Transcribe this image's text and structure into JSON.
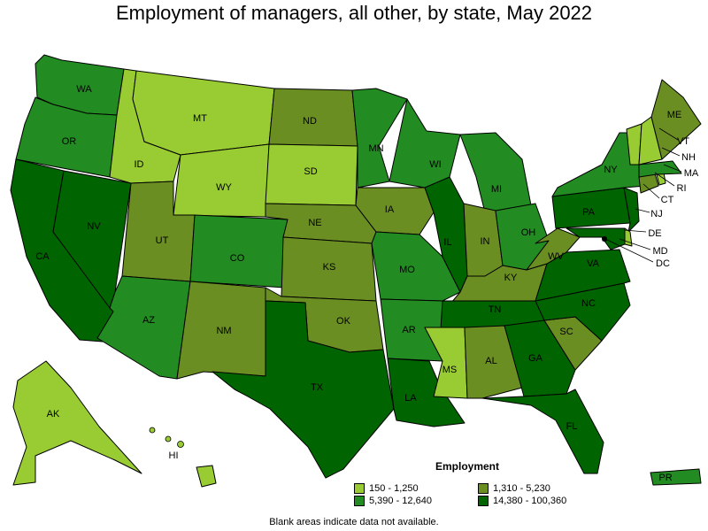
{
  "title": "Employment of managers, all other, by state, May 2022",
  "legend": {
    "title": "Employment",
    "items": [
      {
        "label": "150 - 1,250",
        "color": "#99cc33"
      },
      {
        "label": "1,310 - 5,230",
        "color": "#6b8e23"
      },
      {
        "label": "5,390 - 12,640",
        "color": "#228b22"
      },
      {
        "label": "14,380 - 100,360",
        "color": "#006400"
      }
    ]
  },
  "footnote": "Blank areas indicate data not available.",
  "colors": {
    "c1": "#99cc33",
    "c2": "#6b8e23",
    "c3": "#228b22",
    "c4": "#006400"
  },
  "states": {
    "WA": {
      "label": "WA",
      "class": 3
    },
    "OR": {
      "label": "OR",
      "class": 3
    },
    "CA": {
      "label": "CA",
      "class": 4
    },
    "NV": {
      "label": "NV",
      "class": 4
    },
    "ID": {
      "label": "ID",
      "class": 1
    },
    "MT": {
      "label": "MT",
      "class": 1
    },
    "WY": {
      "label": "WY",
      "class": 1
    },
    "UT": {
      "label": "UT",
      "class": 2
    },
    "AZ": {
      "label": "AZ",
      "class": 3
    },
    "CO": {
      "label": "CO",
      "class": 3
    },
    "NM": {
      "label": "NM",
      "class": 2
    },
    "ND": {
      "label": "ND",
      "class": 2
    },
    "SD": {
      "label": "SD",
      "class": 1
    },
    "NE": {
      "label": "NE",
      "class": 2
    },
    "KS": {
      "label": "KS",
      "class": 2
    },
    "OK": {
      "label": "OK",
      "class": 2
    },
    "TX": {
      "label": "TX",
      "class": 4
    },
    "MN": {
      "label": "MN",
      "class": 3
    },
    "IA": {
      "label": "IA",
      "class": 2
    },
    "MO": {
      "label": "MO",
      "class": 3
    },
    "AR": {
      "label": "AR",
      "class": 3
    },
    "LA": {
      "label": "LA",
      "class": 4
    },
    "WI": {
      "label": "WI",
      "class": 3
    },
    "IL": {
      "label": "IL",
      "class": 4
    },
    "MI": {
      "label": "MI",
      "class": 3
    },
    "IN": {
      "label": "IN",
      "class": 2
    },
    "OH": {
      "label": "OH",
      "class": 3
    },
    "KY": {
      "label": "KY",
      "class": 2
    },
    "TN": {
      "label": "TN",
      "class": 4
    },
    "MS": {
      "label": "MS",
      "class": 1
    },
    "AL": {
      "label": "AL",
      "class": 2
    },
    "GA": {
      "label": "GA",
      "class": 4
    },
    "FL": {
      "label": "FL",
      "class": 4
    },
    "SC": {
      "label": "SC",
      "class": 2
    },
    "NC": {
      "label": "NC",
      "class": 4
    },
    "VA": {
      "label": "VA",
      "class": 4
    },
    "WV": {
      "label": "WV",
      "class": 2
    },
    "PA": {
      "label": "PA",
      "class": 4
    },
    "NY": {
      "label": "NY",
      "class": 3
    },
    "NJ": {
      "label": "NJ",
      "class": 4
    },
    "DE": {
      "label": "DE",
      "class": 1
    },
    "MD": {
      "label": "MD",
      "class": 4
    },
    "DC": {
      "label": "DC",
      "class": 4
    },
    "CT": {
      "label": "CT",
      "class": 2
    },
    "RI": {
      "label": "RI",
      "class": 1
    },
    "MA": {
      "label": "MA",
      "class": 3
    },
    "VT": {
      "label": "VT",
      "class": 1
    },
    "NH": {
      "label": "NH",
      "class": 1
    },
    "ME": {
      "label": "ME",
      "class": 2
    },
    "AK": {
      "label": "AK",
      "class": 1
    },
    "HI": {
      "label": "HI",
      "class": 1
    },
    "PR": {
      "label": "PR",
      "class": 3
    }
  }
}
